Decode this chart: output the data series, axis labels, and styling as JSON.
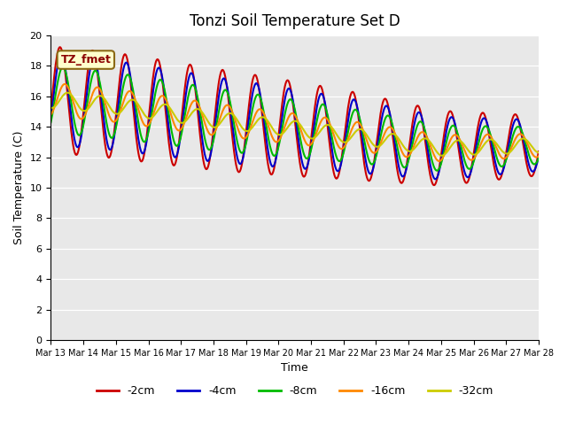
{
  "title": "Tonzi Soil Temperature Set D",
  "xlabel": "Time",
  "ylabel": "Soil Temperature (C)",
  "ylim": [
    0,
    20
  ],
  "yticks": [
    0,
    2,
    4,
    6,
    8,
    10,
    12,
    14,
    16,
    18,
    20
  ],
  "legend_label": "TZ_fmet",
  "series": [
    {
      "label": "-2cm",
      "color": "#cc0000",
      "lw": 1.5
    },
    {
      "label": "-4cm",
      "color": "#0000cc",
      "lw": 1.5
    },
    {
      "label": "-8cm",
      "color": "#00bb00",
      "lw": 1.5
    },
    {
      "label": "-16cm",
      "color": "#ff8800",
      "lw": 1.5
    },
    {
      "label": "-32cm",
      "color": "#cccc00",
      "lw": 1.5
    }
  ],
  "bg_color": "#e8e8e8",
  "fig_bg": "#ffffff",
  "n_days": 15,
  "xtick_labels": [
    "Mar 13",
    "Mar 14",
    "Mar 15",
    "Mar 16",
    "Mar 17",
    "Mar 18",
    "Mar 19",
    "Mar 20",
    "Mar 21",
    "Mar 22",
    "Mar 23",
    "Mar 24",
    "Mar 25",
    "Mar 26",
    "Mar 27",
    "Mar 28"
  ]
}
